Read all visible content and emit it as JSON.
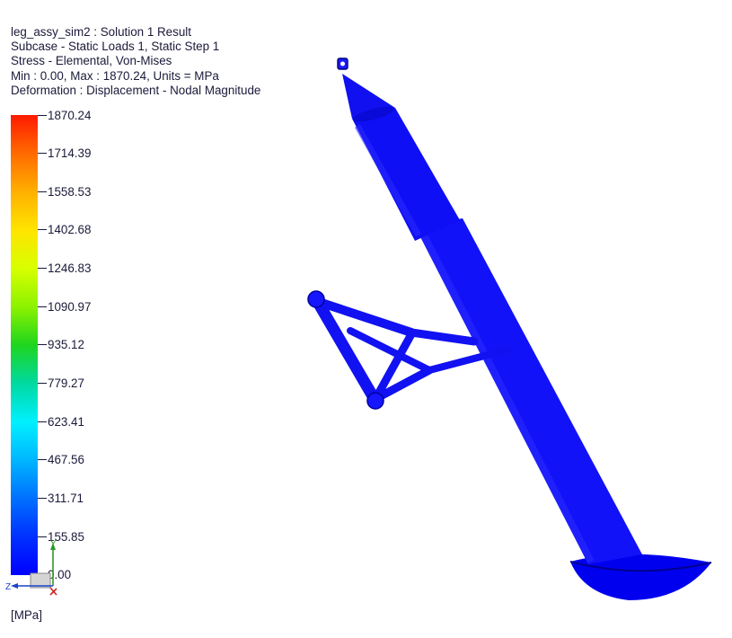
{
  "header": {
    "title": "leg_assy_sim2 : Solution 1 Result",
    "subcase": "Subcase - Static Loads 1, Static Step 1",
    "result_type": "Stress - Elemental, Von-Mises",
    "range": "Min : 0.00, Max : 1870.24, Units = MPa",
    "deformation": "Deformation : Displacement - Nodal Magnitude"
  },
  "legend": {
    "ticks": [
      "1870.24",
      "1714.39",
      "1558.53",
      "1402.68",
      "1246.83",
      "1090.97",
      "935.12",
      "779.27",
      "623.41",
      "467.56",
      "311.71",
      "155.85",
      "0.00"
    ],
    "units": "[MPa]",
    "colors": {
      "max": "#ff1a00",
      "min": "#0000ff"
    }
  },
  "triad": {
    "y": "Y",
    "z": "Z"
  },
  "model": {
    "color": "#1010f0",
    "shadow": "#0000a8"
  }
}
